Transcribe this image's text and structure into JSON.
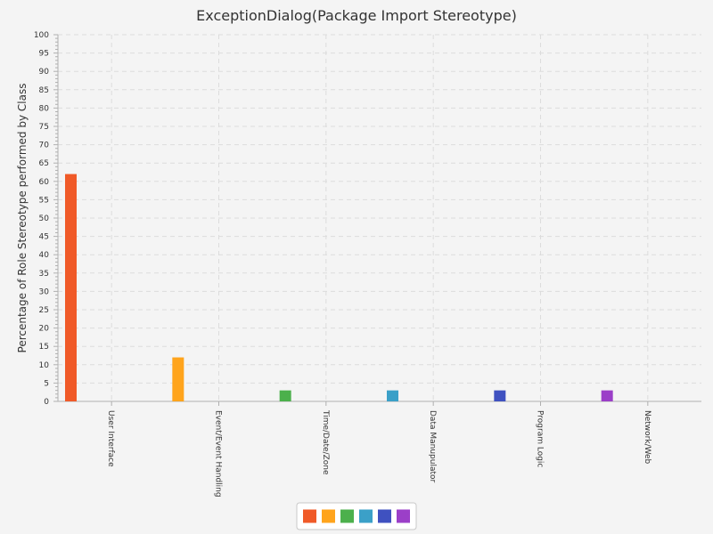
{
  "chart_data": {
    "type": "bar",
    "title": "ExceptionDialog(Package Import Stereotype)",
    "ylabel": "Percentage of Role Stereotype performed by Class",
    "xlabel": "",
    "ylim": [
      0,
      100
    ],
    "ytick_step": 5,
    "grid": true,
    "legend_placement": "bottom-center",
    "categories": [
      "User Interface",
      "Event/Event Handling",
      "Time/Date/Zone",
      "Data Manupulator",
      "Program Logic",
      "Network/Web"
    ],
    "series": [
      {
        "color": "#f05a28",
        "values": [
          62,
          0,
          0,
          0,
          0,
          0
        ]
      },
      {
        "color": "#ffa41c",
        "values": [
          0,
          12,
          0,
          0,
          0,
          0
        ]
      },
      {
        "color": "#4cb04c",
        "values": [
          0,
          0,
          3,
          0,
          0,
          0
        ]
      },
      {
        "color": "#3ba0c8",
        "values": [
          0,
          0,
          0,
          3,
          0,
          0
        ]
      },
      {
        "color": "#3f51c0",
        "values": [
          0,
          0,
          0,
          0,
          3,
          0
        ]
      },
      {
        "color": "#9b3fc8",
        "values": [
          0,
          0,
          0,
          0,
          0,
          3
        ]
      }
    ]
  }
}
